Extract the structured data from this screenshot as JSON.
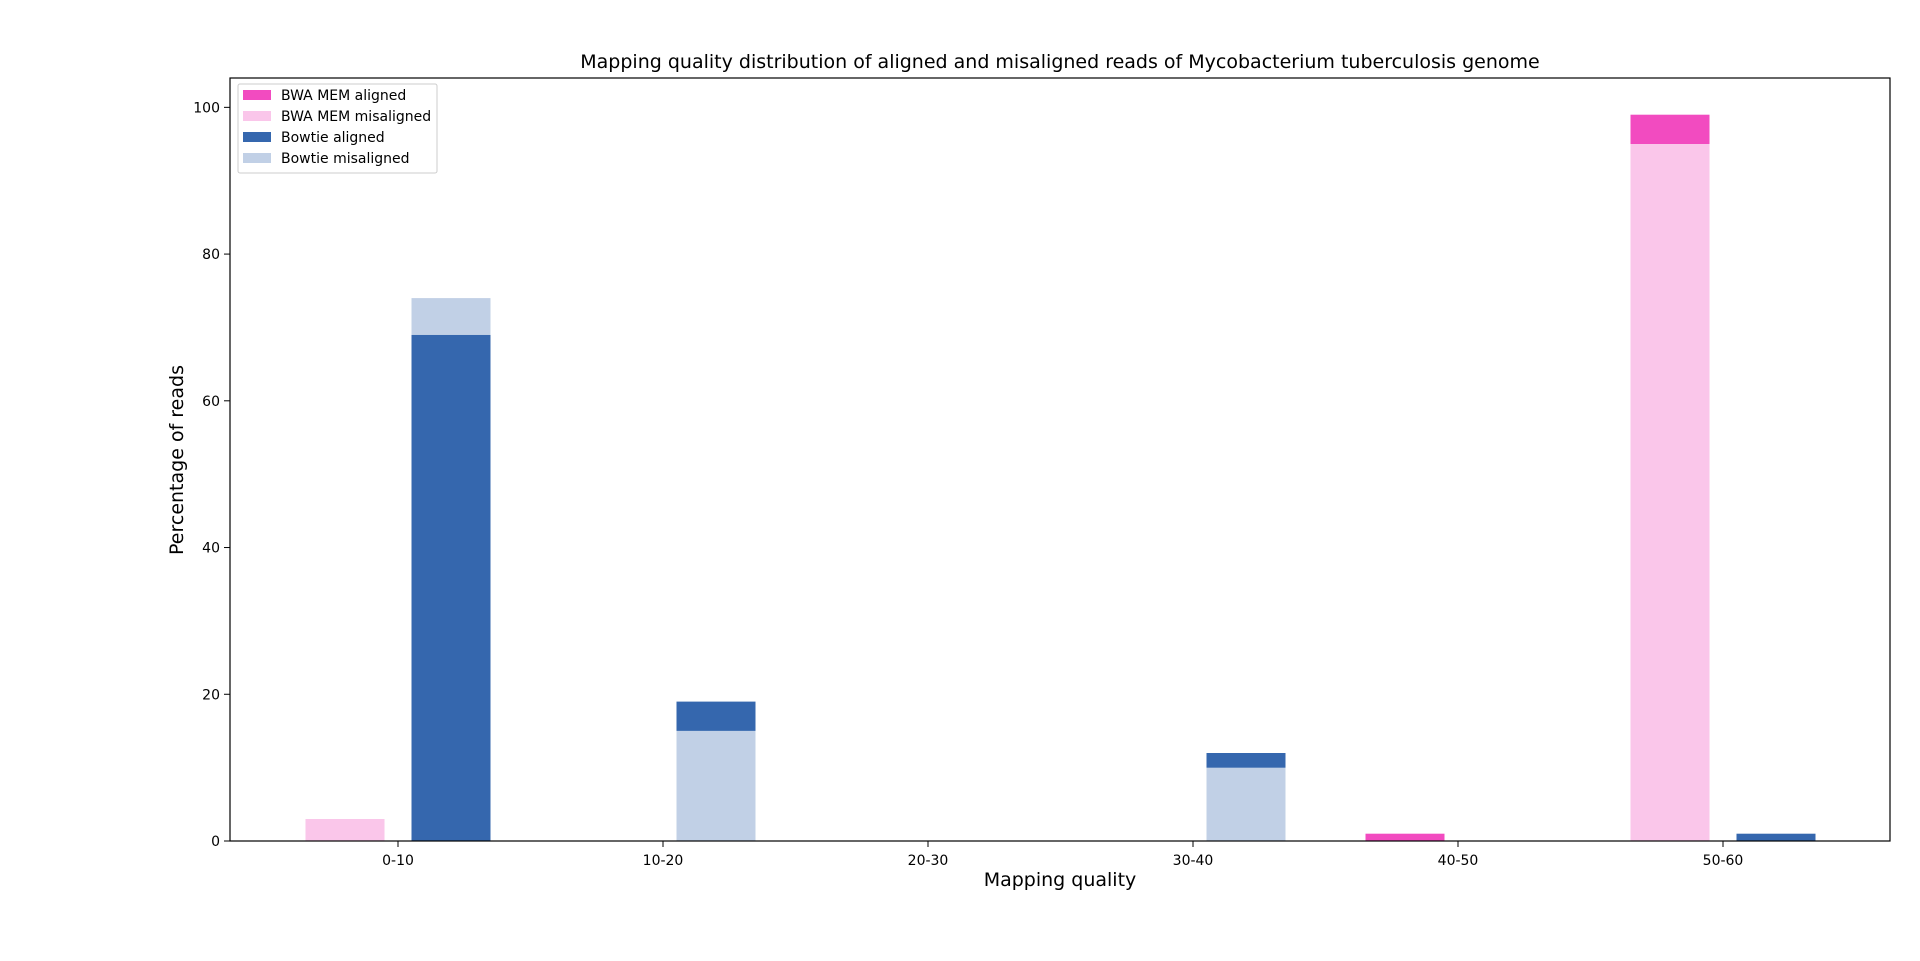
{
  "chart_data": {
    "type": "bar",
    "title": "Mapping quality distribution of aligned and misaligned reads of Mycobacterium tuberculosis genome",
    "xlabel": "Mapping quality",
    "ylabel": "Percentage of reads",
    "categories": [
      "0-10",
      "10-20",
      "20-30",
      "30-40",
      "40-50",
      "50-60"
    ],
    "ylim": [
      0,
      104
    ],
    "yticks": [
      0,
      20,
      40,
      60,
      80,
      100
    ],
    "grid": false,
    "legend_position": "top-left",
    "groups": [
      {
        "name": "BWA MEM",
        "stack": [
          {
            "name": "BWA MEM misaligned",
            "color": "#fac6ea",
            "values": [
              3,
              0,
              0,
              0,
              0,
              95
            ]
          },
          {
            "name": "BWA MEM aligned",
            "color": "#f24bc0",
            "values": [
              0,
              0,
              0,
              0,
              1,
              4
            ]
          }
        ]
      },
      {
        "name": "Bowtie",
        "stack": [
          {
            "name": "Bowtie aligned",
            "color": "#3567ae",
            "values": [
              69,
              0,
              0,
              0,
              0,
              1
            ]
          },
          {
            "name": "Bowtie misaligned",
            "color": "#c1d0e6",
            "values": [
              5,
              15,
              0,
              10,
              0,
              0
            ]
          },
          {
            "name": "Bowtie aligned",
            "color": "#3567ae",
            "values": [
              0,
              4,
              0,
              2,
              0,
              0
            ]
          }
        ]
      }
    ],
    "legend": [
      {
        "label": "BWA MEM aligned",
        "color": "#f24bc0"
      },
      {
        "label": "BWA MEM misaligned",
        "color": "#fac6ea"
      },
      {
        "label": "Bowtie aligned",
        "color": "#3567ae"
      },
      {
        "label": "Bowtie misaligned",
        "color": "#c1d0e6"
      }
    ]
  }
}
